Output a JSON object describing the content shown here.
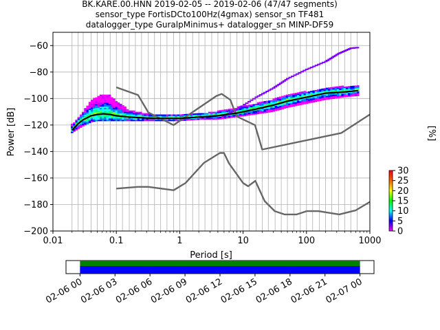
{
  "title_lines": [
    "BK.KARE.00.HNN   2019-02-05 -- 2019-02-06  (47/47 segments)",
    "sensor_type FortisDCto100Hz(4gmax) sensor_sn TF481",
    "datalogger_type GuralpMinimus+ datalogger_sn MINP-DF59"
  ],
  "colors": {
    "model_lines": "#666666",
    "mean_line": "#000000",
    "coverage_green": "#008000",
    "coverage_blue": "#0000ff",
    "grid": "#b0b0b0"
  },
  "chart_data": {
    "type": "heatmap",
    "x_scale": "log",
    "xlabel": "Period [s]",
    "ylabel": "Power [dB]",
    "xlim": [
      0.01,
      1000
    ],
    "ylim": [
      -200,
      -50
    ],
    "x_ticks": [
      {
        "v": 0.01,
        "label": "0.01"
      },
      {
        "v": 0.1,
        "label": "0.1"
      },
      {
        "v": 1,
        "label": "1"
      },
      {
        "v": 10,
        "label": "10"
      },
      {
        "v": 100,
        "label": "100"
      },
      {
        "v": 1000,
        "label": "1000"
      }
    ],
    "y_ticks": [
      {
        "v": -60,
        "label": "−60"
      },
      {
        "v": -80,
        "label": "−80"
      },
      {
        "v": -100,
        "label": "−100"
      },
      {
        "v": -120,
        "label": "−120"
      },
      {
        "v": -140,
        "label": "−140"
      },
      {
        "v": -160,
        "label": "−160"
      },
      {
        "v": -180,
        "label": "−180"
      },
      {
        "v": -200,
        "label": "−200"
      }
    ],
    "grid_periods": [
      0.02,
      0.025,
      0.03,
      0.04,
      0.05,
      0.063,
      0.08,
      0.1,
      0.125,
      0.16,
      0.2,
      0.25,
      0.32,
      0.4,
      0.5,
      0.63,
      0.8,
      1,
      1.25,
      1.6,
      2,
      2.5,
      3.2,
      4,
      5,
      6.3,
      8,
      10,
      12.5,
      16,
      20,
      25,
      32,
      40,
      50,
      63,
      80,
      100,
      125,
      160,
      200,
      250,
      320,
      400,
      500,
      630
    ],
    "nhnm": [
      [
        0.1,
        -168
      ],
      [
        0.22,
        -166.7
      ],
      [
        0.32,
        -166.7
      ],
      [
        0.8,
        -169.2
      ],
      [
        1.24,
        -163.7
      ],
      [
        2.4,
        -148.6
      ],
      [
        4.3,
        -141.1
      ],
      [
        5,
        -141.1
      ],
      [
        6,
        -149
      ],
      [
        10,
        -163.8
      ],
      [
        12,
        -166.2
      ],
      [
        15.6,
        -162.1
      ],
      [
        21.9,
        -177.5
      ],
      [
        31.6,
        -185
      ],
      [
        45,
        -187.5
      ],
      [
        70,
        -187.5
      ],
      [
        101,
        -185
      ],
      [
        154,
        -185
      ],
      [
        328,
        -187.5
      ],
      [
        600,
        -184.4
      ],
      [
        1000,
        -178
      ]
    ],
    "nlnm": [
      [
        0.1,
        -91.5
      ],
      [
        0.22,
        -97.4
      ],
      [
        0.32,
        -110.5
      ],
      [
        0.8,
        -120
      ],
      [
        3.8,
        -98
      ],
      [
        4.6,
        -96.5
      ],
      [
        6.3,
        -101
      ],
      [
        7.9,
        -113.5
      ],
      [
        15.4,
        -120
      ],
      [
        20,
        -138.5
      ],
      [
        354.8,
        -126
      ],
      [
        1000,
        -112
      ]
    ],
    "mean_psd": [
      [
        0.02,
        -124
      ],
      [
        0.025,
        -119
      ],
      [
        0.03,
        -116
      ],
      [
        0.04,
        -113
      ],
      [
        0.05,
        -112
      ],
      [
        0.063,
        -111.5
      ],
      [
        0.08,
        -112
      ],
      [
        0.1,
        -113
      ],
      [
        0.16,
        -114
      ],
      [
        0.25,
        -114.5
      ],
      [
        0.4,
        -115
      ],
      [
        0.63,
        -115
      ],
      [
        1,
        -115
      ],
      [
        2,
        -114
      ],
      [
        4,
        -113
      ],
      [
        8,
        -111
      ],
      [
        16,
        -108
      ],
      [
        30,
        -105
      ],
      [
        50,
        -102
      ],
      [
        100,
        -99
      ],
      [
        200,
        -96
      ],
      [
        400,
        -95
      ],
      [
        650,
        -94
      ]
    ],
    "spread_upper": [
      [
        0.02,
        -120
      ],
      [
        0.03,
        -110
      ],
      [
        0.04,
        -102
      ],
      [
        0.05,
        -99
      ],
      [
        0.063,
        -97
      ],
      [
        0.08,
        -98
      ],
      [
        0.1,
        -102
      ],
      [
        0.16,
        -109
      ],
      [
        0.25,
        -111
      ],
      [
        0.5,
        -113
      ],
      [
        1,
        -113
      ],
      [
        2,
        -112
      ],
      [
        4,
        -110
      ],
      [
        8,
        -107
      ],
      [
        16,
        -104
      ],
      [
        30,
        -101
      ],
      [
        50,
        -98
      ],
      [
        100,
        -95
      ],
      [
        200,
        -93
      ],
      [
        400,
        -91
      ],
      [
        650,
        -91
      ]
    ],
    "spread_lower": [
      [
        0.02,
        -126
      ],
      [
        0.03,
        -121
      ],
      [
        0.04,
        -118
      ],
      [
        0.05,
        -117
      ],
      [
        0.063,
        -117
      ],
      [
        0.08,
        -117
      ],
      [
        0.1,
        -117
      ],
      [
        0.16,
        -117
      ],
      [
        0.25,
        -117
      ],
      [
        0.5,
        -117
      ],
      [
        1,
        -117
      ],
      [
        2,
        -116
      ],
      [
        4,
        -116
      ],
      [
        8,
        -114
      ],
      [
        16,
        -112
      ],
      [
        30,
        -110
      ],
      [
        50,
        -107
      ],
      [
        100,
        -104
      ],
      [
        200,
        -101
      ],
      [
        400,
        -99
      ],
      [
        650,
        -98
      ]
    ],
    "outlier_psd": [
      [
        5,
        -113
      ],
      [
        8,
        -108
      ],
      [
        16,
        -99
      ],
      [
        30,
        -92
      ],
      [
        50,
        -85
      ],
      [
        100,
        -78
      ],
      [
        200,
        -72
      ],
      [
        320,
        -66
      ],
      [
        500,
        -62
      ],
      [
        650,
        -61.5
      ]
    ],
    "colorbar": {
      "label": "[%]",
      "min": 0,
      "max": 30,
      "ticks": [
        0,
        5,
        10,
        15,
        20,
        25,
        30
      ]
    },
    "coverage": {
      "x_ticks": [
        "02-06 00",
        "02-06 03",
        "02-06 06",
        "02-06 09",
        "02-06 12",
        "02-06 15",
        "02-06 18",
        "02-06 21",
        "02-07 00"
      ],
      "start_hours": 0,
      "end_hours": 24,
      "axis_start_hours": -1.2,
      "axis_end_hours": 25.2
    }
  }
}
